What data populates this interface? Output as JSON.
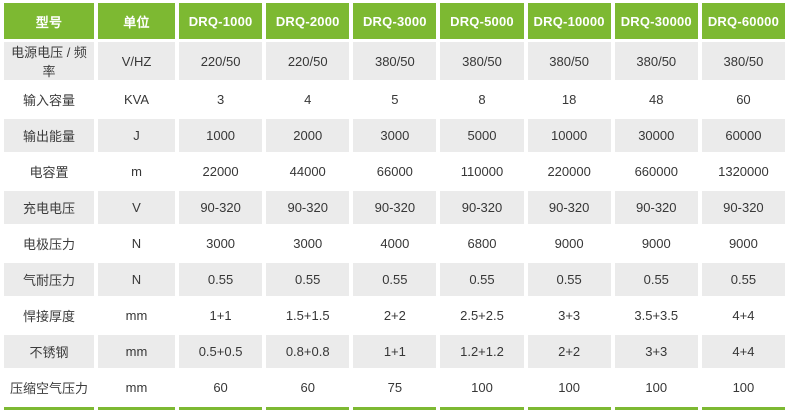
{
  "colors": {
    "accent_green": "#7db932",
    "row_stripe": "#ebebeb",
    "header_text": "#ffffff",
    "body_text": "#373737"
  },
  "table": {
    "columns": [
      "型号",
      "单位",
      "DRQ-1000",
      "DRQ-2000",
      "DRQ-3000",
      "DRQ-5000",
      "DRQ-10000",
      "DRQ-30000",
      "DRQ-60000"
    ],
    "rows": [
      {
        "label": "电源电压 / 频率",
        "unit": "V/HZ",
        "values": [
          "220/50",
          "220/50",
          "380/50",
          "380/50",
          "380/50",
          "380/50",
          "380/50"
        ]
      },
      {
        "label": "输入容量",
        "unit": "KVA",
        "values": [
          "3",
          "4",
          "5",
          "8",
          "18",
          "48",
          "60"
        ]
      },
      {
        "label": "输出能量",
        "unit": "J",
        "values": [
          "1000",
          "2000",
          "3000",
          "5000",
          "10000",
          "30000",
          "60000"
        ]
      },
      {
        "label": "电容置",
        "unit": "m",
        "values": [
          "22000",
          "44000",
          "66000",
          "110000",
          "220000",
          "660000",
          "1320000"
        ]
      },
      {
        "label": "充电电压",
        "unit": "V",
        "values": [
          "90-320",
          "90-320",
          "90-320",
          "90-320",
          "90-320",
          "90-320",
          "90-320"
        ]
      },
      {
        "label": "电极压力",
        "unit": "N",
        "values": [
          "3000",
          "3000",
          "4000",
          "6800",
          "9000",
          "9000",
          "9000"
        ]
      },
      {
        "label": "气耐压力",
        "unit": "N",
        "values": [
          "0.55",
          "0.55",
          "0.55",
          "0.55",
          "0.55",
          "0.55",
          "0.55"
        ]
      },
      {
        "label": "悍接厚度",
        "unit": "mm",
        "values": [
          "1+1",
          "1.5+1.5",
          "2+2",
          "2.5+2.5",
          "3+3",
          "3.5+3.5",
          "4+4"
        ]
      },
      {
        "label": "不锈钢",
        "unit": "mm",
        "values": [
          "0.5+0.5",
          "0.8+0.8",
          "1+1",
          "1.2+1.2",
          "2+2",
          "3+3",
          "4+4"
        ]
      },
      {
        "label": "压缩空气压力",
        "unit": "mm",
        "values": [
          "60",
          "60",
          "75",
          "100",
          "100",
          "100",
          "100"
        ]
      }
    ]
  }
}
